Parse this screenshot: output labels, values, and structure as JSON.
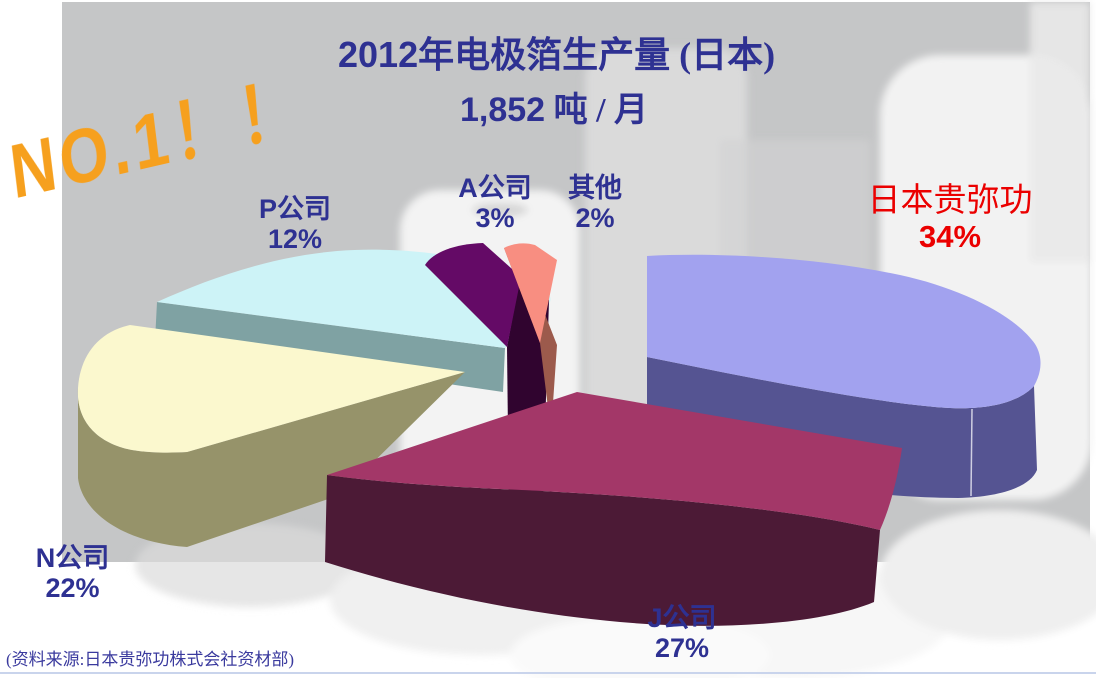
{
  "title": {
    "year": "2012",
    "rest": "年电极箔生产量 (日本)",
    "line2_value": "1,852",
    "line2_unit": " 吨 / 月"
  },
  "annotation": {
    "text": "NO.1！！",
    "color": "#F6A01E"
  },
  "source_note": "(资料来源:日本贵弥功株式会社资材部)",
  "colors": {
    "background_gray": "#C5C6C7",
    "label_blue": "#2E3192",
    "highlight_red": "#EB0000",
    "annotation_orange": "#F6A01E",
    "bottom_rule": "#C9D4EC"
  },
  "chart_data": {
    "type": "pie",
    "style": "3d-exploded",
    "title": "2012年电极箔生产量 (日本)",
    "subtitle": "1,852 吨 / 月",
    "legend_position": "around-slices",
    "slices": [
      {
        "name": "日本贵弥功",
        "value": 34,
        "pct_label": "34%",
        "color_top": "#A2A2EF",
        "color_side": "#555492",
        "label_color": "#EB0000"
      },
      {
        "name": "J公司",
        "value": 27,
        "pct_label": "27%",
        "color_top": "#A33768",
        "color_side": "#4C1A36",
        "label_color": "#2E3192"
      },
      {
        "name": "N公司",
        "value": 22,
        "pct_label": "22%",
        "color_top": "#FBF8CE",
        "color_side": "#96936A",
        "label_color": "#2E3192"
      },
      {
        "name": "P公司",
        "value": 12,
        "pct_label": "12%",
        "color_top": "#CDF3F7",
        "color_side": "#7FA2A3",
        "label_color": "#2E3192"
      },
      {
        "name": "A公司",
        "value": 3,
        "pct_label": "3%",
        "color_top": "#640A66",
        "color_side": "#30042F",
        "label_color": "#2E3192"
      },
      {
        "name": "其他",
        "value": 2,
        "pct_label": "2%",
        "color_top": "#F88E81",
        "color_side": "#9C5A4C",
        "label_color": "#2E3192"
      }
    ]
  }
}
